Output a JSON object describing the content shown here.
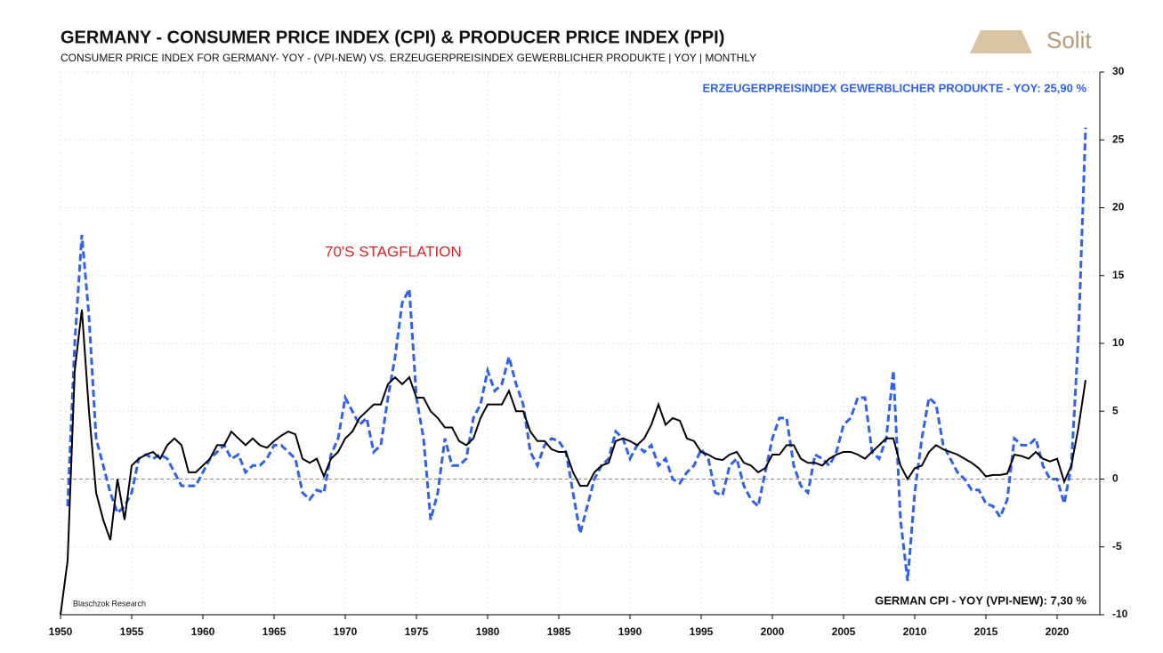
{
  "chart_data": {
    "type": "line",
    "title": "GERMANY - CONSUMER PRICE INDEX (CPI) & PRODUCER PRICE INDEX (PPI)",
    "subtitle": "CONSUMER PRICE INDEX FOR GERMANY- YOY - (VPI-NEW) VS. ERZEUGERPREISINDEX GEWERBLICHER PRODUKTE  | YOY | MONTHLY",
    "annotation": "70'S STAGFLATION",
    "source": "Blaschzok  Research",
    "logo": "Solit",
    "x": [
      1950,
      1950.5,
      1951,
      1951.5,
      1952,
      1952.5,
      1953,
      1953.5,
      1954,
      1954.5,
      1955,
      1955.5,
      1956,
      1956.5,
      1957,
      1957.5,
      1958,
      1958.5,
      1959,
      1959.5,
      1960,
      1960.5,
      1961,
      1961.5,
      1962,
      1962.5,
      1963,
      1963.5,
      1964,
      1964.5,
      1965,
      1965.5,
      1966,
      1966.5,
      1967,
      1967.5,
      1968,
      1968.5,
      1969,
      1969.5,
      1970,
      1970.5,
      1971,
      1971.5,
      1972,
      1972.5,
      1973,
      1973.5,
      1974,
      1974.5,
      1975,
      1975.5,
      1976,
      1976.5,
      1977,
      1977.5,
      1978,
      1978.5,
      1979,
      1979.5,
      1980,
      1980.5,
      1981,
      1981.5,
      1982,
      1982.5,
      1983,
      1983.5,
      1984,
      1984.5,
      1985,
      1985.5,
      1986,
      1986.5,
      1987,
      1987.5,
      1988,
      1988.5,
      1989,
      1989.5,
      1990,
      1990.5,
      1991,
      1991.5,
      1992,
      1992.5,
      1993,
      1993.5,
      1994,
      1994.5,
      1995,
      1995.5,
      1996,
      1996.5,
      1997,
      1997.5,
      1998,
      1998.5,
      1999,
      1999.5,
      2000,
      2000.5,
      2001,
      2001.5,
      2002,
      2002.5,
      2003,
      2003.5,
      2004,
      2004.5,
      2005,
      2005.5,
      2006,
      2006.5,
      2007,
      2007.5,
      2008,
      2008.5,
      2009,
      2009.5,
      2010,
      2010.5,
      2011,
      2011.5,
      2012,
      2012.5,
      2013,
      2013.5,
      2014,
      2014.5,
      2015,
      2015.5,
      2016,
      2016.5,
      2017,
      2017.5,
      2018,
      2018.5,
      2019,
      2019.5,
      2020,
      2020.5,
      2021,
      2021.5,
      2022
    ],
    "series": [
      {
        "name": "ERZEUGERPREISINDEX GEWERBLICHER PRODUKTE - YOY: 25,90 %",
        "color": "#2f62e8",
        "dashed": true,
        "values": [
          null,
          -2,
          10,
          18,
          12,
          3,
          1,
          -1,
          -2.5,
          -2,
          -1,
          1.5,
          1.8,
          1.5,
          1.8,
          1.5,
          0.5,
          -0.5,
          -0.5,
          -0.5,
          0.5,
          1.5,
          2,
          2.5,
          1.5,
          1.8,
          0.5,
          1,
          1,
          1.5,
          2.5,
          2.5,
          2,
          1.5,
          -1,
          -1.5,
          -0.8,
          -1,
          1.8,
          3,
          6,
          5,
          4,
          4.5,
          2,
          2.5,
          6,
          9,
          13,
          14,
          6,
          3,
          -3,
          -1,
          3,
          1,
          1,
          1.5,
          4.5,
          5.5,
          8,
          6.5,
          7,
          9,
          7,
          5.5,
          2,
          1,
          2.5,
          3,
          2.8,
          2,
          -1,
          -4,
          -2,
          0,
          1,
          1.5,
          3.5,
          3,
          1.5,
          2.5,
          2,
          2.5,
          1,
          1.5,
          0,
          -0.3,
          0.5,
          1,
          2.2,
          1.5,
          -1,
          -1.2,
          1,
          1.5,
          -0.5,
          -1.5,
          -2,
          0.5,
          3,
          4.5,
          4.5,
          1,
          -0.5,
          -1,
          1.8,
          1.5,
          1,
          2,
          4,
          4.5,
          6,
          6,
          2,
          1.5,
          3,
          8,
          -3,
          -7.5,
          -1,
          3,
          6,
          5.5,
          2.5,
          1.5,
          0.5,
          0,
          -0.8,
          -0.8,
          -1.8,
          -2,
          -2.8,
          -1.5,
          3,
          2.5,
          2.5,
          3,
          1,
          0,
          0,
          -1.8,
          1,
          10.5,
          25.9
        ]
      },
      {
        "name": "GERMAN CPI - YOY (VPI-NEW): 7,30 %",
        "color": "#000000",
        "dashed": false,
        "values": [
          -10,
          -6,
          8,
          12.5,
          5,
          -1,
          -3,
          -4.5,
          0,
          -3,
          1,
          1.5,
          1.8,
          2,
          1.5,
          2.5,
          3,
          2.5,
          0.5,
          0.5,
          1,
          1.5,
          2.5,
          2.5,
          3.5,
          3,
          2.5,
          3,
          2.5,
          2.3,
          2.8,
          3.2,
          3.5,
          3.3,
          1.5,
          1.2,
          1.5,
          0.2,
          1.5,
          2,
          3,
          3.5,
          4.5,
          5,
          5.5,
          5.5,
          7,
          7.5,
          7,
          7.5,
          6,
          6,
          5,
          4.5,
          3.8,
          3.8,
          2.8,
          2.5,
          3,
          4.5,
          5.5,
          5.5,
          5.5,
          6.5,
          5,
          5,
          3.5,
          2.8,
          2.8,
          2.2,
          2,
          2,
          0.5,
          -0.5,
          -0.5,
          0.5,
          1,
          1.2,
          2.8,
          3,
          2.8,
          2.5,
          3,
          4,
          5.5,
          4,
          4.5,
          4.3,
          3,
          2.8,
          2,
          1.8,
          1.5,
          1.4,
          1.8,
          2,
          1.2,
          1,
          0.5,
          0.8,
          1.8,
          1.8,
          2.5,
          2.5,
          1.5,
          1.2,
          1.2,
          1,
          1.5,
          1.8,
          2,
          2,
          1.8,
          1.5,
          2,
          2.5,
          3,
          3,
          1,
          0,
          0.8,
          1,
          2,
          2.5,
          2.2,
          2,
          1.8,
          1.5,
          1.2,
          0.8,
          0.2,
          0.3,
          0.3,
          0.4,
          1.8,
          1.7,
          1.5,
          2,
          1.5,
          1.3,
          1.5,
          -0.2,
          1,
          3.8,
          7.3
        ]
      }
    ],
    "xlim": [
      1950,
      2023
    ],
    "xticks": [
      1950,
      1955,
      1960,
      1965,
      1970,
      1975,
      1980,
      1985,
      1990,
      1995,
      2000,
      2005,
      2010,
      2015,
      2020
    ],
    "ylim": [
      -10,
      30
    ],
    "yticks": [
      -10,
      -5,
      0,
      5,
      10,
      15,
      20,
      25,
      30
    ],
    "grid": true
  }
}
